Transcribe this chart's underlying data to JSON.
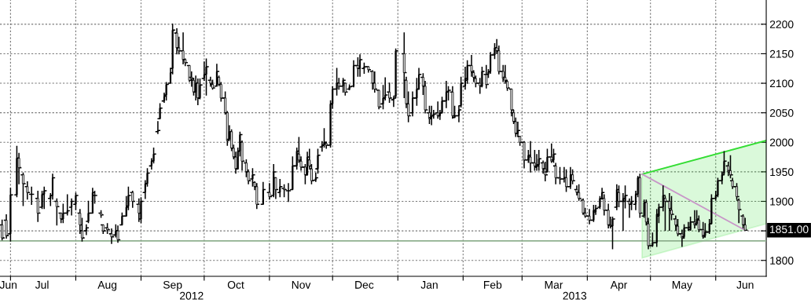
{
  "chart_data": {
    "type": "candlestick",
    "color": "#000000",
    "x": [
      "2012-06-27",
      "2012-06-29",
      "2012-07-01",
      "2012-07-04",
      "2012-07-05",
      "2012-07-07",
      "2012-07-09",
      "2012-07-11",
      "2012-07-14",
      "2012-07-16",
      "2012-07-17",
      "2012-07-20",
      "2012-07-21",
      "2012-07-23",
      "2012-07-25",
      "2012-07-26",
      "2012-07-28",
      "2012-07-30",
      "2012-08-01",
      "2012-08-03",
      "2012-08-04",
      "2012-08-06",
      "2012-08-07",
      "2012-08-09",
      "2012-08-10",
      "2012-08-13",
      "2012-08-14",
      "2012-08-16",
      "2012-08-18",
      "2012-08-20",
      "2012-08-21",
      "2012-08-23",
      "2012-08-25",
      "2012-08-26",
      "2012-08-28",
      "2012-08-31",
      "2012-09-01",
      "2012-09-03",
      "2012-09-04",
      "2012-09-06",
      "2012-09-07",
      "2012-09-09",
      "2012-09-10",
      "2012-09-12",
      "2012-09-13",
      "2012-09-15",
      "2012-09-16",
      "2012-09-18",
      "2012-09-19",
      "2012-09-21",
      "2012-09-22",
      "2012-09-24",
      "2012-09-25",
      "2012-09-26",
      "2012-09-27",
      "2012-09-28",
      "2012-09-29",
      "2012-10-01",
      "2012-10-02",
      "2012-10-04",
      "2012-10-05",
      "2012-10-07",
      "2012-10-08",
      "2012-10-09",
      "2012-10-11",
      "2012-10-12",
      "2012-10-13",
      "2012-10-14",
      "2012-10-15",
      "2012-10-16",
      "2012-10-17",
      "2012-10-18",
      "2012-10-19",
      "2012-10-21",
      "2012-10-22",
      "2012-10-24",
      "2012-10-25",
      "2012-10-26",
      "2012-10-29",
      "2012-11-01",
      "2012-11-03",
      "2012-11-04",
      "2012-11-06",
      "2012-11-08",
      "2012-11-10",
      "2012-11-12",
      "2012-11-14",
      "2012-11-15",
      "2012-11-16",
      "2012-11-18",
      "2012-11-19",
      "2012-11-20",
      "2012-11-21",
      "2012-11-23",
      "2012-11-24",
      "2012-11-26",
      "2012-11-27",
      "2012-11-28",
      "2012-11-30",
      "2012-12-01",
      "2012-12-03",
      "2012-12-04",
      "2012-12-06",
      "2012-12-07",
      "2012-12-09",
      "2012-12-11",
      "2012-12-13",
      "2012-12-14",
      "2012-12-16",
      "2012-12-18",
      "2012-12-20",
      "2012-12-21",
      "2012-12-23",
      "2012-12-25",
      "2012-12-26",
      "2012-12-28",
      "2012-12-30",
      "2012-12-31",
      "2013-01-04",
      "2013-01-05",
      "2013-01-06",
      "2013-01-08",
      "2013-01-10",
      "2013-01-11",
      "2013-01-13",
      "2013-01-14",
      "2013-01-16",
      "2013-01-17",
      "2013-01-18",
      "2013-01-20",
      "2013-01-21",
      "2013-01-22",
      "2013-01-24",
      "2013-01-25",
      "2013-01-27",
      "2013-01-28",
      "2013-01-30",
      "2013-01-31",
      "2013-02-02",
      "2013-02-03",
      "2013-02-05",
      "2013-02-06",
      "2013-02-07",
      "2013-02-09",
      "2013-02-10",
      "2013-02-12",
      "2013-02-13",
      "2013-02-14",
      "2013-02-16",
      "2013-02-17",
      "2013-02-18",
      "2013-02-20",
      "2013-02-21",
      "2013-02-22",
      "2013-02-24",
      "2013-02-25",
      "2013-02-26",
      "2013-02-27",
      "2013-02-28",
      "2013-03-02",
      "2013-03-04",
      "2013-03-05",
      "2013-03-07",
      "2013-03-08",
      "2013-03-09",
      "2013-03-11",
      "2013-03-12",
      "2013-03-13",
      "2013-03-15",
      "2013-03-16",
      "2013-03-17",
      "2013-03-19",
      "2013-03-21",
      "2013-03-22",
      "2013-03-24",
      "2013-03-25",
      "2013-03-27",
      "2013-03-28",
      "2013-03-30",
      "2013-03-31",
      "2013-04-02",
      "2013-04-04",
      "2013-04-05",
      "2013-04-07",
      "2013-04-08",
      "2013-04-09",
      "2013-04-11",
      "2013-04-12",
      "2013-04-13",
      "2013-04-15",
      "2013-04-16",
      "2013-04-18",
      "2013-04-19",
      "2013-04-21",
      "2013-04-22",
      "2013-04-24",
      "2013-04-25",
      "2013-04-26",
      "2013-04-28",
      "2013-04-29",
      "2013-04-30",
      "2013-05-02",
      "2013-05-04",
      "2013-05-05",
      "2013-05-07",
      "2013-05-08",
      "2013-05-10",
      "2013-05-11",
      "2013-05-13",
      "2013-05-14",
      "2013-05-16",
      "2013-05-17",
      "2013-05-19",
      "2013-05-20",
      "2013-05-22",
      "2013-05-23",
      "2013-05-24",
      "2013-05-26",
      "2013-05-27",
      "2013-05-29",
      "2013-05-30",
      "2013-06-01",
      "2013-06-02",
      "2013-06-04",
      "2013-06-05",
      "2013-06-07",
      "2013-06-08",
      "2013-06-09",
      "2013-06-11",
      "2013-06-12",
      "2013-06-14",
      "2013-06-15"
    ],
    "ohlc": [
      [
        1860,
        1868,
        1835,
        1838
      ],
      [
        1868,
        1877,
        1838,
        1842
      ],
      [
        1845,
        1922,
        1833,
        1911
      ],
      [
        1911,
        1993,
        1908,
        1973
      ],
      [
        1973,
        1981,
        1930,
        1957
      ],
      [
        1945,
        1948,
        1893,
        1930
      ],
      [
        1925,
        1933,
        1904,
        1915
      ],
      [
        1912,
        1924,
        1895,
        1912
      ],
      [
        1905,
        1917,
        1866,
        1880
      ],
      [
        1890,
        1917,
        1888,
        1912
      ],
      [
        1912,
        1924,
        1888,
        1918
      ],
      [
        1905,
        1913,
        1893,
        1910
      ],
      [
        1910,
        1946,
        1904,
        1940
      ],
      [
        1900,
        1904,
        1860,
        1891
      ],
      [
        1880,
        1880,
        1864,
        1870
      ],
      [
        1870,
        1895,
        1864,
        1880
      ],
      [
        1880,
        1911,
        1877,
        1884
      ],
      [
        1890,
        1904,
        1877,
        1900
      ],
      [
        1895,
        1914,
        1886,
        1910
      ],
      [
        1880,
        1886,
        1846,
        1860
      ],
      [
        1850,
        1871,
        1833,
        1838
      ],
      [
        1850,
        1860,
        1844,
        1855
      ],
      [
        1866,
        1900,
        1864,
        1880
      ],
      [
        1880,
        1922,
        1880,
        1915
      ],
      [
        1910,
        1917,
        1897,
        1910
      ],
      [
        1880,
        1884,
        1873,
        1877
      ],
      [
        1860,
        1860,
        1846,
        1850
      ],
      [
        1855,
        1862,
        1846,
        1852
      ],
      [
        1845,
        1853,
        1829,
        1840
      ],
      [
        1843,
        1860,
        1840,
        1850
      ],
      [
        1850,
        1858,
        1831,
        1835
      ],
      [
        1860,
        1880,
        1860,
        1875
      ],
      [
        1875,
        1908,
        1875,
        1890
      ],
      [
        1892,
        1924,
        1886,
        1910
      ],
      [
        1915,
        1917,
        1890,
        1900
      ],
      [
        1895,
        1904,
        1866,
        1880
      ],
      [
        1870,
        1906,
        1864,
        1900
      ],
      [
        1915,
        1935,
        1905,
        1930
      ],
      [
        1930,
        1955,
        1926,
        1948
      ],
      [
        1960,
        1972,
        1955,
        1968
      ],
      [
        1968,
        1990,
        1965,
        1980
      ],
      [
        2018,
        2035,
        2015,
        2020
      ],
      [
        2040,
        2065,
        2040,
        2058
      ],
      [
        2070,
        2083,
        2068,
        2078
      ],
      [
        2080,
        2101,
        2072,
        2098
      ],
      [
        2100,
        2125,
        2100,
        2118
      ],
      [
        2125,
        2200,
        2116,
        2190
      ],
      [
        2185,
        2192,
        2150,
        2160
      ],
      [
        2160,
        2178,
        2150,
        2155
      ],
      [
        2155,
        2185,
        2133,
        2140
      ],
      [
        2140,
        2141,
        2130,
        2135
      ],
      [
        2130,
        2130,
        2103,
        2105
      ],
      [
        2110,
        2119,
        2095,
        2108
      ],
      [
        2105,
        2108,
        2080,
        2085
      ],
      [
        2085,
        2112,
        2072,
        2100
      ],
      [
        2100,
        2107,
        2064,
        2075
      ],
      [
        2075,
        2107,
        2074,
        2097
      ],
      [
        2108,
        2136,
        2105,
        2115
      ],
      [
        2115,
        2141,
        2080,
        2128
      ],
      [
        2105,
        2110,
        2095,
        2100
      ],
      [
        2098,
        2105,
        2090,
        2092
      ],
      [
        2095,
        2132,
        2095,
        2120
      ],
      [
        2110,
        2112,
        2096,
        2098
      ],
      [
        2098,
        2101,
        2070,
        2075
      ],
      [
        2075,
        2085,
        2048,
        2050
      ],
      [
        2050,
        2052,
        1995,
        2003
      ],
      [
        2005,
        2028,
        2005,
        2018
      ],
      [
        2018,
        2021,
        1986,
        1990
      ],
      [
        1990,
        1995,
        1972,
        1975
      ],
      [
        1975,
        1983,
        1948,
        1955
      ],
      [
        1955,
        1990,
        1955,
        1985
      ],
      [
        1985,
        2017,
        1977,
        2013
      ],
      [
        2000,
        2002,
        1953,
        1968
      ],
      [
        1965,
        1970,
        1942,
        1950
      ],
      [
        1950,
        1953,
        1930,
        1935
      ],
      [
        1938,
        1955,
        1926,
        1945
      ],
      [
        1932,
        1933,
        1920,
        1925
      ],
      [
        1925,
        1930,
        1888,
        1895
      ],
      [
        1895,
        1932,
        1895,
        1920
      ],
      [
        1915,
        1930,
        1904,
        1908
      ],
      [
        1910,
        1962,
        1908,
        1950
      ],
      [
        1940,
        1940,
        1905,
        1920
      ],
      [
        1915,
        1937,
        1908,
        1925
      ],
      [
        1922,
        1928,
        1908,
        1920
      ],
      [
        1918,
        1930,
        1900,
        1918
      ],
      [
        1920,
        1975,
        1920,
        1960
      ],
      [
        1960,
        1990,
        1955,
        1985
      ],
      [
        1980,
        2008,
        1966,
        1970
      ],
      [
        1968,
        1975,
        1953,
        1958
      ],
      [
        1958,
        1962,
        1930,
        1945
      ],
      [
        1945,
        1983,
        1945,
        1975
      ],
      [
        1970,
        1988,
        1957,
        1960
      ],
      [
        1955,
        1962,
        1930,
        1935
      ],
      [
        1936,
        1948,
        1934,
        1940
      ],
      [
        1955,
        1988,
        1948,
        1978
      ],
      [
        1992,
        2001,
        1985,
        1995
      ],
      [
        1995,
        2023,
        1992,
        2000
      ],
      [
        1998,
        2000,
        1990,
        1995
      ],
      [
        1995,
        2070,
        1992,
        2065
      ],
      [
        2065,
        2094,
        2058,
        2090
      ],
      [
        2090,
        2125,
        2080,
        2100
      ],
      [
        2100,
        2108,
        2090,
        2095
      ],
      [
        2095,
        2108,
        2085,
        2105
      ],
      [
        2100,
        2100,
        2080,
        2085
      ],
      [
        2090,
        2097,
        2089,
        2094
      ],
      [
        2095,
        2138,
        2094,
        2130
      ],
      [
        2130,
        2143,
        2112,
        2125
      ],
      [
        2125,
        2148,
        2112,
        2140
      ],
      [
        2125,
        2134,
        2117,
        2128
      ],
      [
        2128,
        2128,
        2119,
        2123
      ],
      [
        2120,
        2121,
        2090,
        2100
      ],
      [
        2100,
        2119,
        2085,
        2090
      ],
      [
        2088,
        2088,
        2057,
        2060
      ],
      [
        2065,
        2096,
        2057,
        2075
      ],
      [
        2075,
        2109,
        2072,
        2080
      ],
      [
        2085,
        2100,
        2068,
        2075
      ],
      [
        2072,
        2076,
        2061,
        2075
      ],
      [
        2078,
        2158,
        2076,
        2155
      ],
      [
        2150,
        2185,
        2076,
        2118
      ],
      [
        2105,
        2110,
        2059,
        2065
      ],
      [
        2065,
        2085,
        2035,
        2045
      ],
      [
        2050,
        2085,
        2045,
        2075
      ],
      [
        2075,
        2108,
        2063,
        2090
      ],
      [
        2090,
        2125,
        2090,
        2115
      ],
      [
        2110,
        2116,
        2081,
        2095
      ],
      [
        2095,
        2103,
        2050,
        2055
      ],
      [
        2050,
        2061,
        2032,
        2040
      ],
      [
        2042,
        2061,
        2030,
        2045
      ],
      [
        2045,
        2054,
        2041,
        2048
      ],
      [
        2050,
        2068,
        2041,
        2045
      ],
      [
        2045,
        2054,
        2039,
        2050
      ],
      [
        2050,
        2076,
        2050,
        2070
      ],
      [
        2070,
        2103,
        2059,
        2085
      ],
      [
        2085,
        2094,
        2072,
        2088
      ],
      [
        2085,
        2094,
        2041,
        2045
      ],
      [
        2042,
        2061,
        2042,
        2045
      ],
      [
        2045,
        2061,
        2035,
        2055
      ],
      [
        2062,
        2110,
        2060,
        2100
      ],
      [
        2095,
        2127,
        2090,
        2108
      ],
      [
        2105,
        2138,
        2100,
        2130
      ],
      [
        2130,
        2147,
        2112,
        2120
      ],
      [
        2118,
        2121,
        2103,
        2110
      ],
      [
        2108,
        2112,
        2094,
        2100
      ],
      [
        2100,
        2108,
        2083,
        2096
      ],
      [
        2095,
        2127,
        2094,
        2120
      ],
      [
        2115,
        2130,
        2092,
        2098
      ],
      [
        2115,
        2123,
        2110,
        2119
      ],
      [
        2120,
        2152,
        2117,
        2148
      ],
      [
        2148,
        2167,
        2142,
        2160
      ],
      [
        2160,
        2174,
        2151,
        2155
      ],
      [
        2155,
        2163,
        2116,
        2120
      ],
      [
        2120,
        2130,
        2103,
        2108
      ],
      [
        2110,
        2130,
        2100,
        2105
      ],
      [
        2103,
        2103,
        2088,
        2092
      ],
      [
        2090,
        2090,
        2045,
        2055
      ],
      [
        2050,
        2054,
        2032,
        2035
      ],
      [
        2035,
        2041,
        2010,
        2015
      ],
      [
        2015,
        2034,
        2010,
        2020
      ],
      [
        2010,
        2010,
        1995,
        2000
      ],
      [
        2000,
        2001,
        1957,
        1970
      ],
      [
        1970,
        1986,
        1966,
        1978
      ],
      [
        1975,
        2001,
        1950,
        1965
      ],
      [
        1965,
        1986,
        1953,
        1960
      ],
      [
        1958,
        1979,
        1953,
        1960
      ],
      [
        1962,
        1986,
        1953,
        1972
      ],
      [
        1965,
        1968,
        1948,
        1955
      ],
      [
        1955,
        1966,
        1935,
        1945
      ],
      [
        1950,
        1988,
        1950,
        1975
      ],
      [
        1975,
        1997,
        1966,
        1968
      ],
      [
        1970,
        1988,
        1966,
        1980
      ],
      [
        1960,
        1964,
        1930,
        1940
      ],
      [
        1940,
        1957,
        1930,
        1938
      ],
      [
        1938,
        1957,
        1933,
        1940
      ],
      [
        1940,
        1953,
        1917,
        1925
      ],
      [
        1925,
        1957,
        1922,
        1945
      ],
      [
        1945,
        1953,
        1930,
        1935
      ],
      [
        1920,
        1926,
        1911,
        1915
      ],
      [
        1915,
        1928,
        1902,
        1905
      ],
      [
        1902,
        1904,
        1878,
        1880
      ],
      [
        1880,
        1888,
        1873,
        1875
      ],
      [
        1875,
        1886,
        1862,
        1868
      ],
      [
        1868,
        1893,
        1866,
        1885
      ],
      [
        1882,
        1893,
        1878,
        1888
      ],
      [
        1890,
        1908,
        1888,
        1905
      ],
      [
        1905,
        1922,
        1904,
        1915
      ],
      [
        1905,
        1911,
        1877,
        1885
      ],
      [
        1885,
        1895,
        1855,
        1860
      ],
      [
        1860,
        1873,
        1855,
        1858
      ],
      [
        1858,
        1873,
        1820,
        1870
      ],
      [
        1890,
        1928,
        1886,
        1920
      ],
      [
        1915,
        1926,
        1891,
        1900
      ],
      [
        1900,
        1913,
        1851,
        1905
      ],
      [
        1900,
        1926,
        1889,
        1910
      ],
      [
        1900,
        1904,
        1873,
        1895
      ],
      [
        1895,
        1908,
        1886,
        1900
      ],
      [
        1895,
        1917,
        1886,
        1912
      ],
      [
        1912,
        1942,
        1908,
        1940
      ],
      [
        1940,
        1946,
        1873,
        1880
      ],
      [
        1875,
        1902,
        1873,
        1898
      ],
      [
        1898,
        1902,
        1860,
        1865
      ],
      [
        1862,
        1871,
        1820,
        1825
      ],
      [
        1825,
        1846,
        1824,
        1830
      ],
      [
        1830,
        1886,
        1824,
        1878
      ],
      [
        1875,
        1895,
        1864,
        1890
      ],
      [
        1890,
        1926,
        1884,
        1910
      ],
      [
        1905,
        1908,
        1851,
        1900
      ],
      [
        1900,
        1913,
        1851,
        1888
      ],
      [
        1885,
        1908,
        1869,
        1878
      ],
      [
        1870,
        1875,
        1851,
        1860
      ],
      [
        1858,
        1869,
        1842,
        1845
      ],
      [
        1845,
        1851,
        1824,
        1838
      ],
      [
        1840,
        1860,
        1838,
        1855
      ],
      [
        1855,
        1864,
        1851,
        1856
      ],
      [
        1852,
        1873,
        1851,
        1865
      ],
      [
        1865,
        1884,
        1855,
        1860
      ],
      [
        1862,
        1884,
        1862,
        1870
      ],
      [
        1868,
        1875,
        1849,
        1852
      ],
      [
        1852,
        1864,
        1838,
        1840
      ],
      [
        1842,
        1862,
        1840,
        1848
      ],
      [
        1848,
        1869,
        1846,
        1862
      ],
      [
        1862,
        1911,
        1862,
        1905
      ],
      [
        1905,
        1917,
        1902,
        1910
      ],
      [
        1910,
        1939,
        1908,
        1935
      ],
      [
        1935,
        1950,
        1930,
        1945
      ],
      [
        1948,
        1984,
        1946,
        1968
      ],
      [
        1960,
        1966,
        1944,
        1950
      ],
      [
        1952,
        1977,
        1940,
        1945
      ],
      [
        1935,
        1939,
        1922,
        1925
      ],
      [
        1925,
        1930,
        1904,
        1908
      ],
      [
        1902,
        1904,
        1864,
        1886
      ],
      [
        1875,
        1877,
        1855,
        1860
      ],
      [
        1860,
        1871,
        1851,
        1851
      ]
    ],
    "series": [
      {
        "type": "line",
        "color": "#33dd33",
        "x": [
          "2013-04-27",
          "2013-06-25"
        ],
        "values": [
          1946,
          2003
        ],
        "lower": [
          1804,
          1862
        ],
        "upper": [
          1946,
          2003
        ]
      },
      {
        "type": "line",
        "color": "#c896c8",
        "x": [
          "2013-04-27",
          "2013-06-15"
        ],
        "values": [
          1946,
          1851
        ]
      }
    ],
    "xlim": [
      "2012-06-26",
      "2013-06-25"
    ],
    "xticks": [
      {
        "value": "2012-06-30",
        "label": "Jun"
      },
      {
        "value": "2012-07-01",
        "label": null
      },
      {
        "value": "2012-07-16",
        "label": "Jul"
      },
      {
        "value": "2012-08-01",
        "label": null
      },
      {
        "value": "2012-08-16",
        "label": "Aug"
      },
      {
        "value": "2012-09-01",
        "label": null
      },
      {
        "value": "2012-09-16",
        "label": "Sep"
      },
      {
        "value": "2012-10-01",
        "label": null
      },
      {
        "value": "2012-10-16",
        "label": "Oct"
      },
      {
        "value": "2012-11-01",
        "label": null
      },
      {
        "value": "2012-11-16",
        "label": "Nov"
      },
      {
        "value": "2012-12-01",
        "label": null
      },
      {
        "value": "2012-12-16",
        "label": "Dec"
      },
      {
        "value": "2013-01-01",
        "label": null
      },
      {
        "value": "2013-01-16",
        "label": "Jan"
      },
      {
        "value": "2013-02-01",
        "label": null
      },
      {
        "value": "2013-02-15",
        "label": "Feb"
      },
      {
        "value": "2013-03-01",
        "label": null
      },
      {
        "value": "2013-03-16",
        "label": "Mar"
      },
      {
        "value": "2013-04-01",
        "label": null
      },
      {
        "value": "2013-04-16",
        "label": "Apr"
      },
      {
        "value": "2013-05-01",
        "label": null
      },
      {
        "value": "2013-05-16",
        "label": "May"
      },
      {
        "value": "2013-06-01",
        "label": null
      },
      {
        "value": "2013-06-15",
        "label": "Jun"
      }
    ],
    "ylim": [
      1773,
      2241
    ],
    "yticks": [
      1800,
      {
        "value": 1850,
        "label": null
      },
      1900,
      1950,
      2000,
      2050,
      2100,
      2150,
      2200
    ],
    "ref_lines": [
      {
        "axis": "y",
        "value": 1833,
        "color": "#8fb08f"
      }
    ],
    "annotations": [
      "2012",
      "2013",
      {
        "text": "1851.00",
        "x": "2013-06-15",
        "y": 1851
      }
    ],
    "grid": true,
    "legend": false
  }
}
